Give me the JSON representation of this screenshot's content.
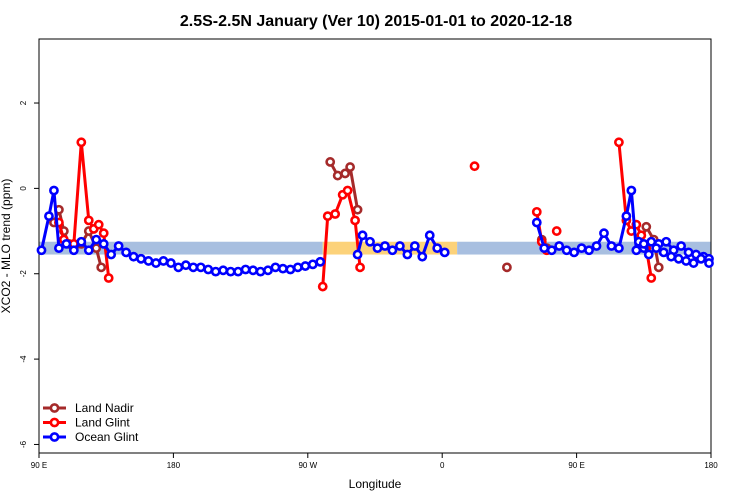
{
  "chart_data": {
    "type": "line",
    "title": "2.5S-2.5N January (Ver 10)   2015-01-01 to 2020-12-18",
    "xlabel": "Longitude",
    "ylabel": "XCO2 - MLO trend (ppm)",
    "xlim": [
      -90,
      180
    ],
    "ylim": [
      -6.2,
      3.5
    ],
    "x_ticks": [
      {
        "value": -90,
        "label": "90 E"
      },
      {
        "value": -36,
        "label": "180"
      },
      {
        "value": 18,
        "label": "90 W"
      },
      {
        "value": 72,
        "label": "0"
      },
      {
        "value": 126,
        "label": "90 E"
      },
      {
        "value": 180,
        "label": "180"
      }
    ],
    "y_ticks": [
      {
        "value": -6,
        "label": "-6"
      },
      {
        "value": -4,
        "label": "-4"
      },
      {
        "value": -2,
        "label": "-2"
      },
      {
        "value": 0,
        "label": "0"
      },
      {
        "value": 2,
        "label": "2"
      }
    ],
    "grid": false,
    "legend_position": "bottom-left",
    "bands": [
      {
        "x0": -90,
        "x1": 24,
        "y0": -1.55,
        "y1": -1.25,
        "color": "#a8bfe0"
      },
      {
        "x0": 24,
        "x1": 78,
        "y0": -1.55,
        "y1": -1.25,
        "color": "#fcd27a"
      },
      {
        "x0": 78,
        "x1": 180,
        "y0": -1.55,
        "y1": -1.25,
        "color": "#a8bfe0"
      }
    ],
    "series": [
      {
        "name": "Land Nadir",
        "color": "#a52a2a",
        "segments": [
          [
            [
              -84,
              -0.8
            ],
            [
              -82,
              -0.5
            ],
            [
              -80,
              -1.0
            ],
            [
              -78,
              -1.3
            ],
            [
              -76,
              -1.4
            ],
            [
              -73,
              -1.3
            ],
            [
              -70,
              -1.0
            ],
            [
              -67,
              -1.4
            ],
            [
              -65,
              -1.85
            ]
          ],
          [
            [
              27,
              0.62
            ],
            [
              30,
              0.3
            ],
            [
              33,
              0.35
            ],
            [
              35,
              0.5
            ],
            [
              38,
              -0.5
            ]
          ],
          [
            [
              98,
              -1.85
            ]
          ],
          [
            [
              112,
              -1.2
            ],
            [
              114,
              -1.4
            ]
          ],
          [
            [
              151,
              -1.4
            ],
            [
              154,
              -0.9
            ],
            [
              157,
              -1.2
            ],
            [
              159,
              -1.85
            ]
          ]
        ]
      },
      {
        "name": "Land Glint",
        "color": "#ff0000",
        "segments": [
          [
            [
              -82,
              -0.8
            ],
            [
              -80,
              -1.2
            ],
            [
              -76,
              -1.3
            ],
            [
              -73,
              1.08
            ],
            [
              -70,
              -0.75
            ],
            [
              -68,
              -0.95
            ],
            [
              -66,
              -0.85
            ],
            [
              -64,
              -1.05
            ],
            [
              -62,
              -2.1
            ]
          ],
          [
            [
              24,
              -2.3
            ],
            [
              26,
              -0.65
            ],
            [
              29,
              -0.6
            ],
            [
              32,
              -0.15
            ],
            [
              34,
              -0.05
            ],
            [
              37,
              -0.75
            ],
            [
              39,
              -1.85
            ]
          ],
          [
            [
              85,
              0.52
            ]
          ],
          [
            [
              110,
              -0.55
            ],
            [
              112,
              -1.25
            ],
            [
              114,
              -1.45
            ]
          ],
          [
            [
              118,
              -1.0
            ]
          ],
          [
            [
              143,
              1.08
            ],
            [
              146,
              -0.75
            ],
            [
              148,
              -1.0
            ],
            [
              150,
              -0.85
            ],
            [
              152,
              -1.1
            ],
            [
              154,
              -1.4
            ],
            [
              156,
              -2.1
            ]
          ]
        ]
      },
      {
        "name": "Ocean Glint",
        "color": "#0000ff",
        "segments": [
          [
            [
              -89,
              -1.45
            ],
            [
              -86,
              -0.65
            ],
            [
              -84,
              -0.05
            ],
            [
              -82,
              -1.4
            ],
            [
              -79,
              -1.3
            ],
            [
              -76,
              -1.45
            ],
            [
              -73,
              -1.25
            ],
            [
              -70,
              -1.45
            ],
            [
              -67,
              -1.2
            ],
            [
              -64,
              -1.3
            ],
            [
              -61,
              -1.55
            ],
            [
              -58,
              -1.35
            ],
            [
              -55,
              -1.5
            ],
            [
              -52,
              -1.6
            ],
            [
              -49,
              -1.65
            ],
            [
              -46,
              -1.7
            ],
            [
              -43,
              -1.75
            ],
            [
              -40,
              -1.7
            ],
            [
              -37,
              -1.75
            ],
            [
              -34,
              -1.85
            ],
            [
              -31,
              -1.8
            ],
            [
              -28,
              -1.85
            ],
            [
              -25,
              -1.85
            ],
            [
              -22,
              -1.9
            ],
            [
              -19,
              -1.95
            ],
            [
              -16,
              -1.92
            ],
            [
              -13,
              -1.95
            ],
            [
              -10,
              -1.95
            ],
            [
              -7,
              -1.9
            ],
            [
              -4,
              -1.92
            ],
            [
              -1,
              -1.95
            ],
            [
              2,
              -1.92
            ],
            [
              5,
              -1.85
            ],
            [
              8,
              -1.88
            ],
            [
              11,
              -1.9
            ],
            [
              14,
              -1.85
            ],
            [
              17,
              -1.82
            ],
            [
              20,
              -1.78
            ],
            [
              23,
              -1.72
            ]
          ],
          [
            [
              38,
              -1.55
            ],
            [
              40,
              -1.1
            ],
            [
              43,
              -1.25
            ],
            [
              46,
              -1.4
            ],
            [
              49,
              -1.35
            ],
            [
              52,
              -1.45
            ],
            [
              55,
              -1.35
            ],
            [
              58,
              -1.55
            ],
            [
              61,
              -1.35
            ],
            [
              64,
              -1.6
            ],
            [
              67,
              -1.1
            ],
            [
              70,
              -1.4
            ],
            [
              73,
              -1.5
            ]
          ],
          [
            [
              110,
              -0.8
            ],
            [
              113,
              -1.4
            ],
            [
              116,
              -1.45
            ],
            [
              119,
              -1.35
            ],
            [
              122,
              -1.45
            ],
            [
              125,
              -1.5
            ],
            [
              128,
              -1.4
            ],
            [
              131,
              -1.45
            ],
            [
              134,
              -1.35
            ],
            [
              137,
              -1.05
            ],
            [
              140,
              -1.35
            ],
            [
              143,
              -1.4
            ],
            [
              146,
              -0.65
            ],
            [
              148,
              -0.05
            ],
            [
              150,
              -1.45
            ]
          ],
          [
            [
              153,
              -1.4
            ],
            [
              156,
              -1.25
            ],
            [
              159,
              -1.3
            ],
            [
              162,
              -1.25
            ],
            [
              165,
              -1.45
            ],
            [
              168,
              -1.35
            ],
            [
              171,
              -1.5
            ],
            [
              174,
              -1.55
            ],
            [
              177,
              -1.6
            ],
            [
              180,
              -1.65
            ],
            [
              183,
              -1.75
            ]
          ],
          [
            [
              151,
              -1.25
            ],
            [
              153,
              -1.3
            ],
            [
              155,
              -1.55
            ],
            [
              158,
              -1.4
            ],
            [
              161,
              -1.5
            ],
            [
              164,
              -1.6
            ],
            [
              167,
              -1.65
            ],
            [
              170,
              -1.7
            ],
            [
              173,
              -1.75
            ],
            [
              176,
              -1.65
            ]
          ]
        ]
      }
    ]
  }
}
